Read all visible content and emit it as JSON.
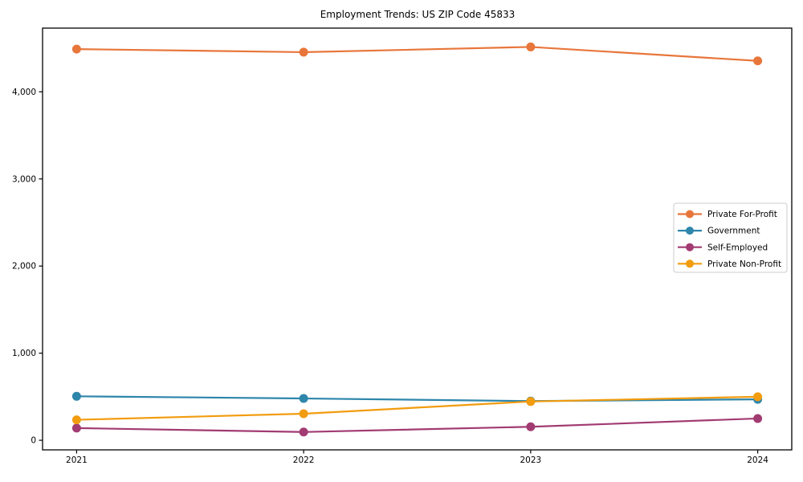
{
  "chart_data": {
    "type": "line",
    "title": "Employment Trends: US ZIP Code 45833",
    "x": [
      2021,
      2022,
      2023,
      2024
    ],
    "x_tick_labels": [
      "2021",
      "2022",
      "2023",
      "2024"
    ],
    "y_ticks": [
      0,
      1000,
      2000,
      3000,
      4000
    ],
    "y_tick_labels": [
      "0",
      "1,000",
      "2,000",
      "3,000",
      "4,000"
    ],
    "xlim": [
      2020.85,
      2024.15
    ],
    "ylim": [
      -110,
      4731
    ],
    "grid": false,
    "legend_position": "center right",
    "marker": "circle",
    "series": [
      {
        "name": "Private For-Profit",
        "color": "#e8763b",
        "values": [
          4490,
          4455,
          4515,
          4355
        ]
      },
      {
        "name": "Government",
        "color": "#2e86ab",
        "values": [
          505,
          480,
          450,
          470
        ]
      },
      {
        "name": "Self-Employed",
        "color": "#a23b72",
        "values": [
          140,
          95,
          155,
          250
        ]
      },
      {
        "name": "Private Non-Profit",
        "color": "#f29c0f",
        "values": [
          235,
          305,
          445,
          500
        ]
      }
    ]
  }
}
